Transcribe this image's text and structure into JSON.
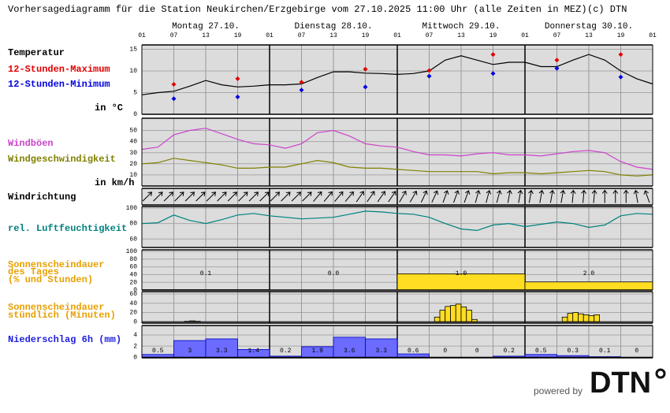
{
  "header": {
    "title": "Vorhersagediagramm für die Station Neukirchen/Erzgebirge vom 27.10.2025 11:00 Uhr (alle Zeiten in MEZ)",
    "copyright": "(c) DTN"
  },
  "time_axis": {
    "days": [
      "Montag 27.10.",
      "Dienstag 28.10.",
      "Mittwoch 29.10.",
      "Donnerstag 30.10."
    ],
    "hour_labels": [
      "01",
      "07",
      "13",
      "19",
      "01",
      "07",
      "13",
      "19",
      "01",
      "07",
      "13",
      "19",
      "01",
      "07",
      "13",
      "19",
      "01"
    ]
  },
  "chart_data": [
    {
      "type": "line",
      "title": "Temperatur",
      "unit_label": "in °C",
      "ylim": [
        0,
        16
      ],
      "yticks": [
        0,
        5,
        10,
        15
      ],
      "grid": true,
      "series": [
        {
          "color": "#000000",
          "style": "line",
          "values": [
            4.5,
            5,
            5.3,
            6.5,
            7.8,
            6.8,
            6.3,
            6.5,
            6.8,
            6.8,
            7,
            8.5,
            9.8,
            9.8,
            9.5,
            9.4,
            9.2,
            9.4,
            10,
            12.5,
            13.5,
            12.5,
            11.5,
            12,
            12,
            11,
            11,
            12.5,
            13.8,
            12.5,
            10,
            8.2,
            7
          ]
        },
        {
          "name": "12-Stunden-Maximum",
          "color": "#e00000",
          "style": "points",
          "values": [
            6.9,
            8.2,
            7.4,
            10.4,
            10.1,
            13.8,
            12.5,
            13.8
          ]
        },
        {
          "name": "12-Stunden-Minimum",
          "color": "#0000e0",
          "style": "points",
          "values": [
            3.6,
            4.0,
            5.6,
            6.3,
            8.8,
            9.4,
            10.6,
            8.6
          ]
        }
      ]
    },
    {
      "type": "line",
      "unit_label": "in km/h",
      "ylim": [
        0,
        61
      ],
      "yticks": [
        10,
        20,
        30,
        40,
        50
      ],
      "grid": true,
      "series": [
        {
          "name": "Windböen",
          "color": "#cc44cc",
          "style": "line",
          "values": [
            33,
            35,
            46,
            50,
            52,
            47,
            42,
            38,
            37,
            34,
            38,
            48,
            50,
            45,
            38,
            36,
            35,
            31,
            28,
            28,
            27,
            29,
            30,
            28,
            28,
            27,
            29,
            31,
            32,
            30,
            22,
            17,
            15
          ]
        },
        {
          "name": "Windgeschwindigkeit",
          "color": "#808000",
          "style": "line",
          "values": [
            20,
            21,
            25,
            23,
            21,
            19,
            16,
            16,
            17,
            17,
            20,
            23,
            21,
            17,
            16,
            16,
            15,
            14,
            13,
            13,
            13,
            13,
            11,
            12,
            12,
            11,
            12,
            13,
            14,
            13,
            10,
            9,
            10
          ]
        }
      ]
    },
    {
      "type": "arrows",
      "title": "Windrichtung",
      "values": [
        45,
        45,
        45,
        45,
        45,
        45,
        45,
        45,
        45,
        45,
        45,
        45,
        45,
        45,
        45,
        45,
        40,
        40,
        40,
        40,
        35,
        35,
        35,
        35,
        30,
        30,
        25,
        25,
        20,
        20,
        20,
        15,
        15,
        15,
        10,
        10,
        10,
        10,
        10,
        10,
        5,
        5,
        5,
        0,
        0,
        0,
        -10,
        -20
      ]
    },
    {
      "type": "line",
      "ylim": [
        49,
        102
      ],
      "yticks": [
        60,
        80,
        100
      ],
      "grid": true,
      "series": [
        {
          "name": "rel. Luftfeuchtigkeit",
          "color": "#008080",
          "style": "line",
          "values": [
            80,
            81,
            91,
            84,
            80,
            85,
            91,
            93,
            90,
            88,
            86,
            87,
            88,
            92,
            96,
            95,
            93,
            92,
            88,
            80,
            73,
            71,
            78,
            80,
            76,
            79,
            82,
            80,
            75,
            78,
            90,
            93,
            92
          ]
        }
      ]
    },
    {
      "type": "bar",
      "title": [
        "Sonnenscheindauer",
        "des Tages",
        "(% und Stunden)"
      ],
      "title_color": "#e8a000",
      "color": "#ffdd22",
      "ylim": [
        0,
        104
      ],
      "yticks": [
        0,
        20,
        40,
        60,
        80,
        100
      ],
      "grid": true,
      "values": [
        1,
        0,
        42,
        21
      ],
      "hours": [
        "0.1",
        "0.0",
        "1.0",
        "2.0"
      ]
    },
    {
      "type": "bar",
      "title": [
        "Sonnenscheindauer",
        "stündlich (Minuten)"
      ],
      "title_color": "#e8a000",
      "color": "#ffdd22",
      "ylim": [
        -3,
        65
      ],
      "yticks": [
        0,
        20,
        40,
        60
      ],
      "grid": true,
      "values": [
        0,
        0,
        0,
        0,
        0,
        0,
        0,
        0,
        1,
        2,
        1,
        0,
        0,
        0,
        0,
        0,
        0,
        0,
        0,
        0,
        0,
        0,
        0,
        0,
        0,
        0,
        0,
        0,
        0,
        0,
        0,
        0,
        0,
        0,
        0,
        0,
        0,
        0,
        0,
        0,
        0,
        0,
        0,
        0,
        0,
        0,
        0,
        0,
        0,
        0,
        0,
        0,
        0,
        0,
        0,
        10,
        25,
        33,
        35,
        38,
        32,
        25,
        5,
        0,
        0,
        0,
        0,
        0,
        0,
        0,
        0,
        0,
        0,
        0,
        0,
        0,
        0,
        0,
        0,
        10,
        18,
        20,
        17,
        15,
        13,
        15,
        0,
        0,
        0,
        0,
        0,
        0,
        0,
        0,
        0,
        0
      ]
    },
    {
      "type": "bar",
      "title": "Niederschlag 6h (mm)",
      "title_color": "#2020e0",
      "color": "#6b6bff",
      "ylim": [
        -0.1,
        5.7
      ],
      "yticks": [
        0,
        2,
        4
      ],
      "grid": true,
      "labels": true,
      "values": [
        0.5,
        3,
        3.3,
        1.4,
        0.2,
        1.9,
        3.6,
        3.3,
        0.6,
        0,
        0,
        0.2,
        0.5,
        0.3,
        0.1,
        0
      ]
    }
  ],
  "footer": {
    "powered_by": "powered by",
    "logo": "DTN"
  }
}
